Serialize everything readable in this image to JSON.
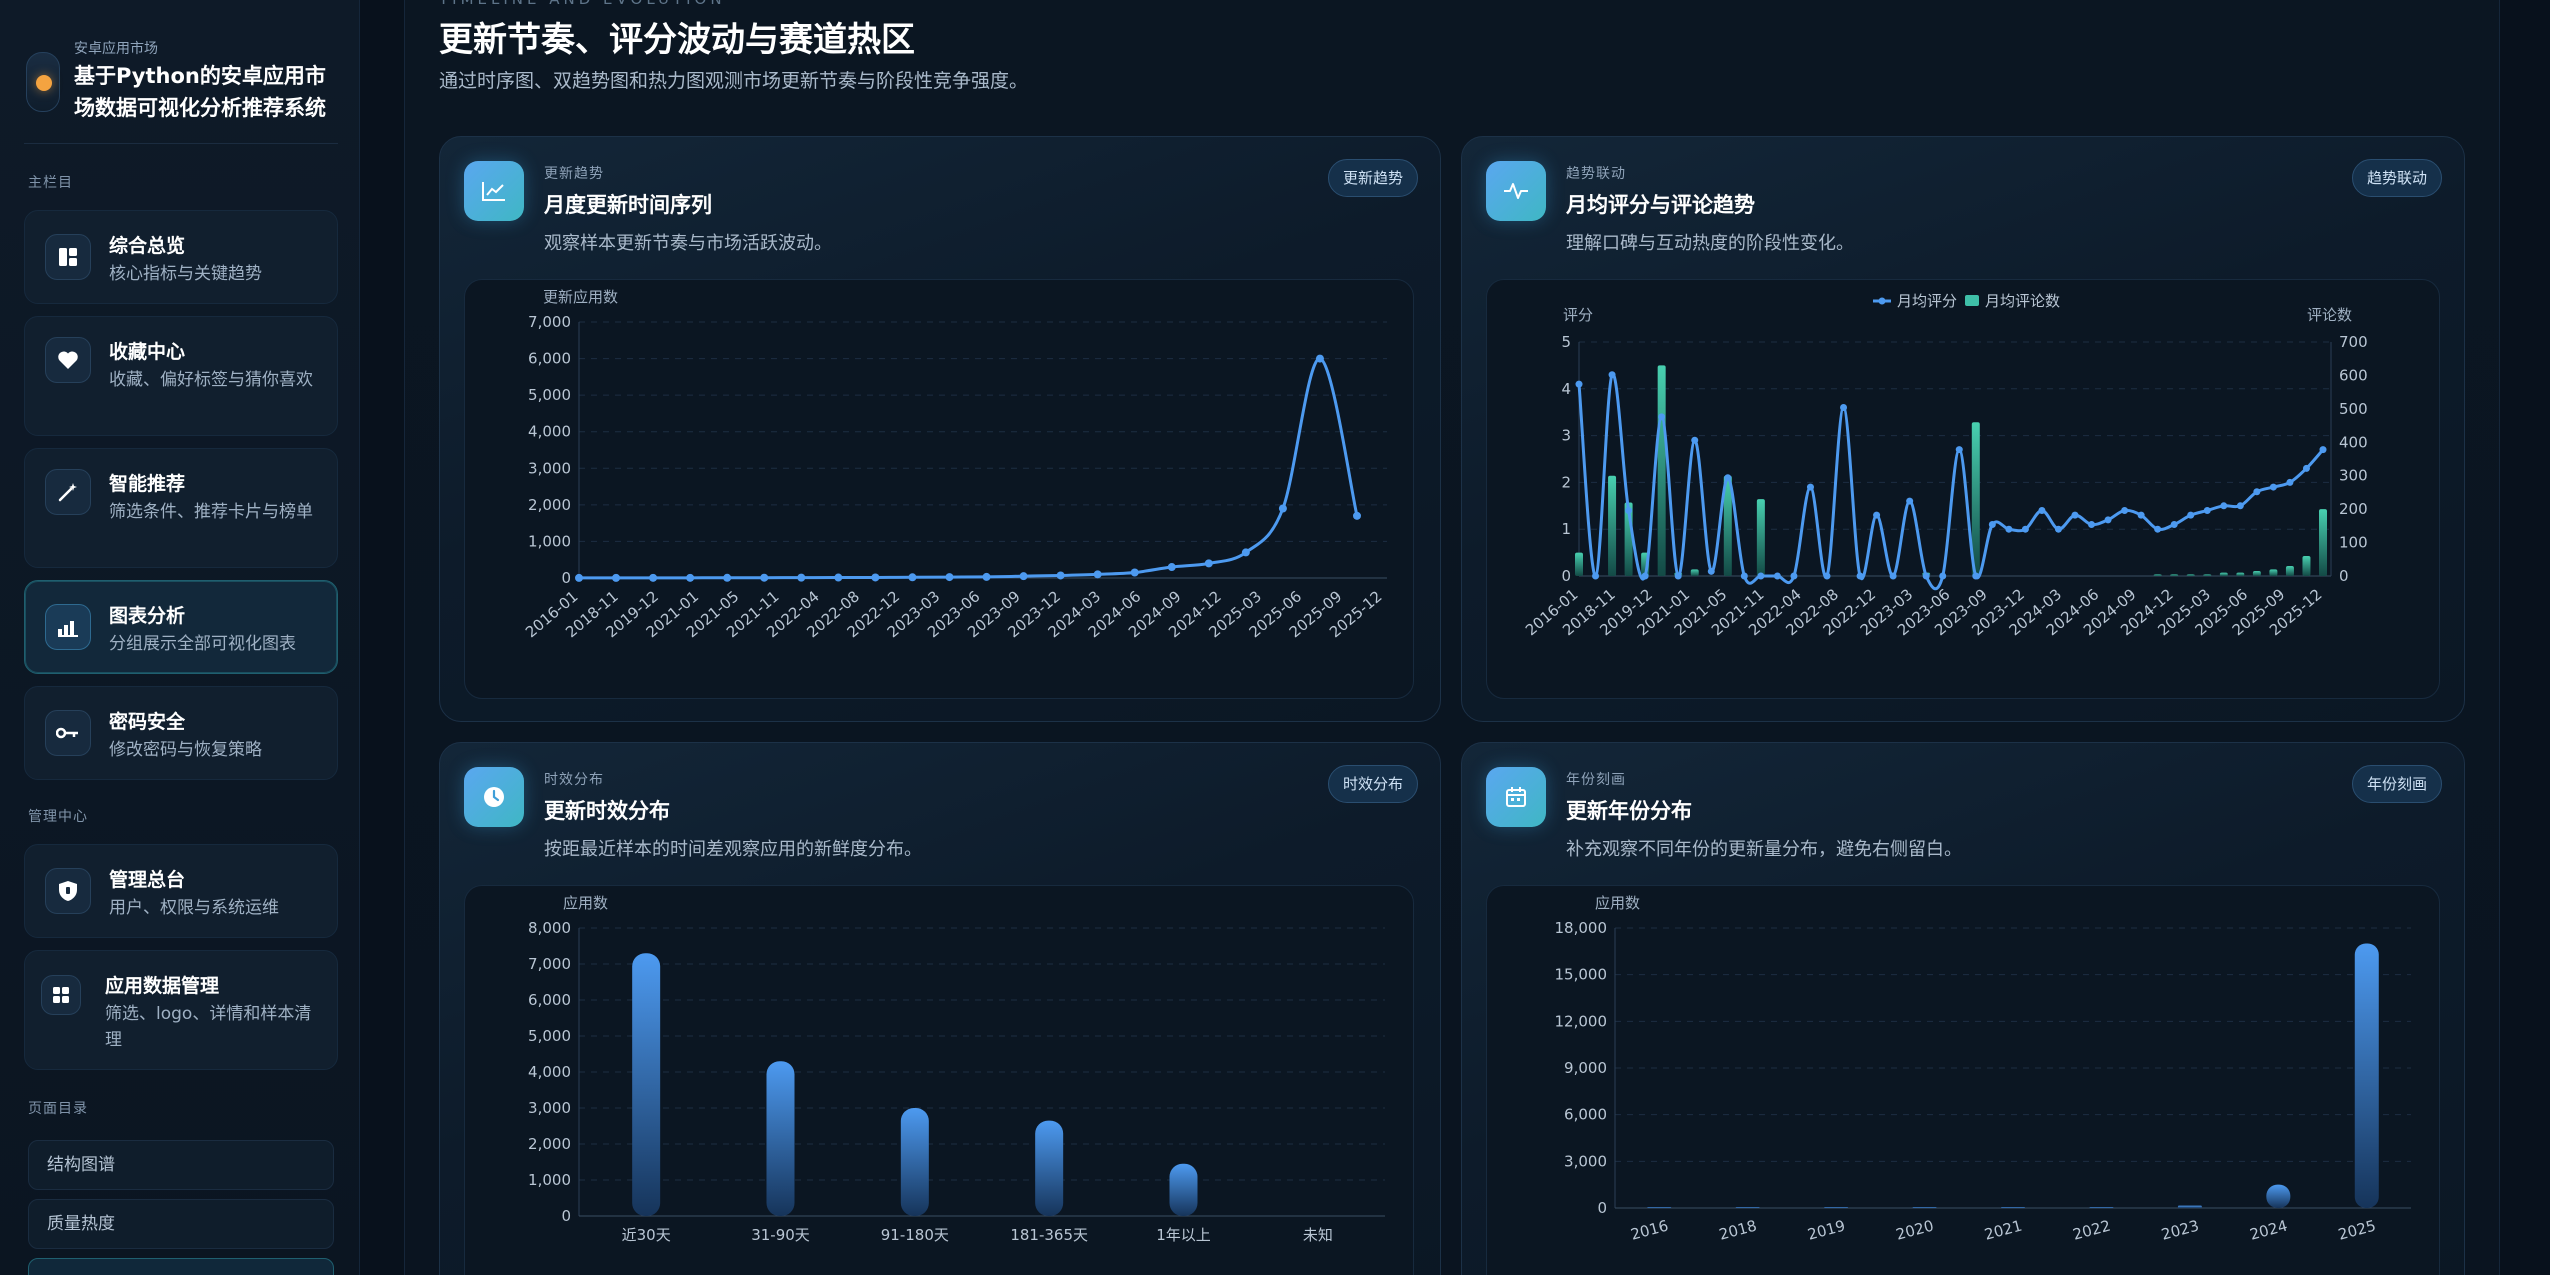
{
  "brand": {
    "kicker": "安卓应用市场",
    "title": "基于Python的安卓应用市场数据可视化分析推荐系统"
  },
  "sidebar": {
    "section_main": "主栏目",
    "section_admin": "管理中心",
    "section_toc": "页面目录",
    "items": [
      {
        "title": "综合总览",
        "desc": "核心指标与关键趋势",
        "icon": "dashboard-icon"
      },
      {
        "title": "收藏中心",
        "desc": "收藏、偏好标签与猜你喜欢",
        "icon": "heart-icon"
      },
      {
        "title": "智能推荐",
        "desc": "筛选条件、推荐卡片与榜单",
        "icon": "magic-wand-icon"
      },
      {
        "title": "图表分析",
        "desc": "分组展示全部可视化图表",
        "icon": "bar-chart-icon",
        "active": true
      },
      {
        "title": "密码安全",
        "desc": "修改密码与恢复策略",
        "icon": "key-icon"
      }
    ],
    "admin_items": [
      {
        "title": "管理总台",
        "desc": "用户、权限与系统运维",
        "icon": "shield-icon"
      },
      {
        "title": "应用数据管理",
        "desc": "筛选、logo、详情和样本清理",
        "icon": "grid-icon"
      }
    ],
    "toc": [
      "结构图谱",
      "质量热度"
    ]
  },
  "header": {
    "kicker": "TIMELINE AND EVOLUTION",
    "title": "更新节奏、评分波动与赛道热区",
    "subtitle": "通过时序图、双趋势图和热力图观测市场更新节奏与阶段性竞争强度。"
  },
  "cards": {
    "c1": {
      "kicker": "更新趋势",
      "title": "月度更新时间序列",
      "desc": "观察样本更新节奏与市场活跃波动。",
      "badge": "更新趋势"
    },
    "c2": {
      "kicker": "趋势联动",
      "title": "月均评分与评论趋势",
      "desc": "理解口碑与互动热度的阶段性变化。",
      "badge": "趋势联动"
    },
    "c3": {
      "kicker": "时效分布",
      "title": "更新时效分布",
      "desc": "按距最近样本的时间差观察应用的新鲜度分布。",
      "badge": "时效分布"
    },
    "c4": {
      "kicker": "年份刻画",
      "title": "更新年份分布",
      "desc": "补充观察不同年份的更新量分布，避免右侧留白。",
      "badge": "年份刻画"
    }
  },
  "chart_data": [
    {
      "type": "line",
      "ylabel": "更新应用数",
      "ylim": [
        0,
        7000
      ],
      "yticks": [
        0,
        1000,
        2000,
        3000,
        4000,
        5000,
        6000,
        7000
      ],
      "xticks": [
        "2016-01",
        "2018-11",
        "2019-12",
        "2021-01",
        "2021-05",
        "2021-11",
        "2022-04",
        "2022-08",
        "2022-12",
        "2023-03",
        "2023-06",
        "2023-09",
        "2023-12",
        "2024-03",
        "2024-06",
        "2024-09",
        "2024-12",
        "2025-03",
        "2025-06",
        "2025-09",
        "2025-12"
      ],
      "values": [
        2,
        3,
        4,
        5,
        6,
        8,
        10,
        12,
        15,
        20,
        25,
        30,
        50,
        70,
        100,
        150,
        300,
        400,
        700,
        1900,
        6000,
        1700
      ],
      "grid": true
    },
    {
      "type": "line",
      "legend": [
        "月均评分",
        "月均评论数"
      ],
      "legend_position": "top-center",
      "ylabel": "评分",
      "y2label": "评论数",
      "ylim": [
        0,
        5
      ],
      "y2lim": [
        0,
        700
      ],
      "yticks": [
        0,
        1,
        2,
        3,
        4,
        5
      ],
      "y2ticks": [
        0,
        100,
        200,
        300,
        400,
        500,
        600,
        700
      ],
      "xticks": [
        "2016-01",
        "2018-11",
        "2019-12",
        "2021-01",
        "2021-05",
        "2021-11",
        "2022-04",
        "2022-08",
        "2022-12",
        "2023-03",
        "2023-06",
        "2023-09",
        "2023-12",
        "2024-03",
        "2024-06",
        "2024-09",
        "2024-12",
        "2025-03",
        "2025-06",
        "2025-09",
        "2025-12"
      ],
      "series": [
        {
          "name": "月均评分",
          "values": [
            4.1,
            0,
            4.3,
            1.4,
            0,
            3.4,
            0,
            2.9,
            0.1,
            2.1,
            0,
            0,
            0,
            0,
            1.9,
            0,
            3.6,
            0,
            1.3,
            0,
            1.6,
            0,
            0,
            2.7,
            0,
            1.1,
            1.0,
            1.0,
            1.4,
            1.0,
            1.3,
            1.1,
            1.2,
            1.4,
            1.3,
            1.0,
            1.1,
            1.3,
            1.4,
            1.5,
            1.5,
            1.8,
            1.9,
            2.0,
            2.3,
            2.7
          ]
        },
        {
          "name": "月均评论数",
          "values": [
            70,
            0,
            300,
            220,
            70,
            630,
            10,
            20,
            0,
            300,
            0,
            230,
            0,
            0,
            0,
            0,
            0,
            0,
            0,
            0,
            0,
            10,
            0,
            0,
            460,
            0,
            0,
            0,
            0,
            0,
            0,
            0,
            0,
            0,
            0,
            5,
            5,
            5,
            5,
            10,
            10,
            15,
            20,
            30,
            60,
            200
          ]
        }
      ],
      "grid": true
    },
    {
      "type": "bar",
      "ylabel": "应用数",
      "ylim": [
        0,
        8000
      ],
      "yticks": [
        0,
        1000,
        2000,
        3000,
        4000,
        5000,
        6000,
        7000,
        8000
      ],
      "categories": [
        "近30天",
        "31-90天",
        "91-180天",
        "181-365天",
        "1年以上",
        "未知"
      ],
      "values": [
        7300,
        4300,
        3000,
        2650,
        1450,
        0
      ],
      "grid": true
    },
    {
      "type": "bar",
      "ylabel": "应用数",
      "ylim": [
        0,
        18000
      ],
      "yticks": [
        0,
        3000,
        6000,
        9000,
        12000,
        15000,
        18000
      ],
      "categories": [
        "2016",
        "2018",
        "2019",
        "2020",
        "2021",
        "2022",
        "2023",
        "2024",
        "2025"
      ],
      "values": [
        5,
        10,
        15,
        20,
        30,
        60,
        150,
        1500,
        17000
      ],
      "grid": true
    }
  ],
  "colors": {
    "accent_blue": "#4d9af0",
    "accent_teal": "#3fbfa8",
    "active_border": "#1f5f6f"
  }
}
